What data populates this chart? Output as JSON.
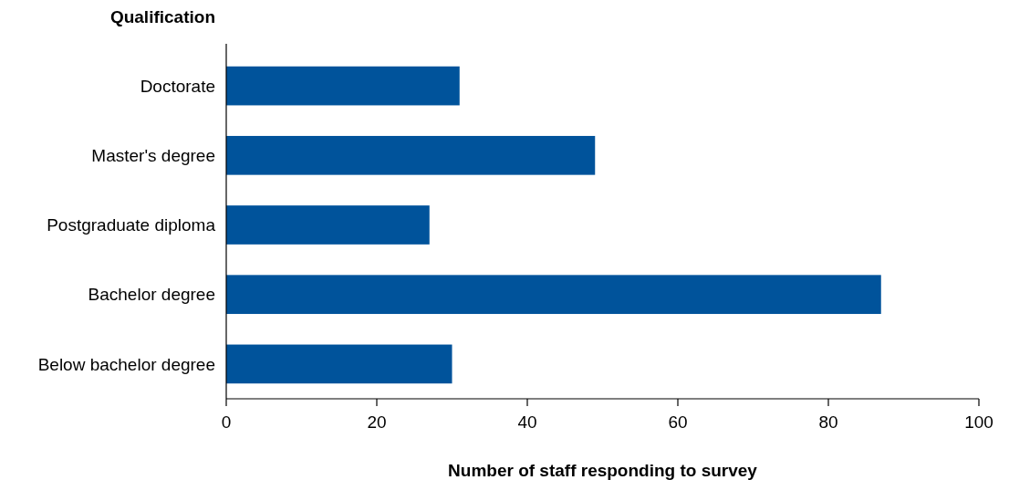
{
  "chart_data": {
    "type": "bar",
    "orientation": "horizontal",
    "ylabel": "Qualification",
    "xlabel": "Number of staff responding to survey",
    "categories": [
      "Doctorate",
      "Master's degree",
      "Postgraduate diploma",
      "Bachelor degree",
      "Below bachelor degree"
    ],
    "values": [
      31,
      49,
      27,
      87,
      30
    ],
    "color": "#00539b",
    "xlim": [
      0,
      100
    ],
    "xticks": [
      0,
      20,
      40,
      60,
      80,
      100
    ],
    "grid": false
  }
}
